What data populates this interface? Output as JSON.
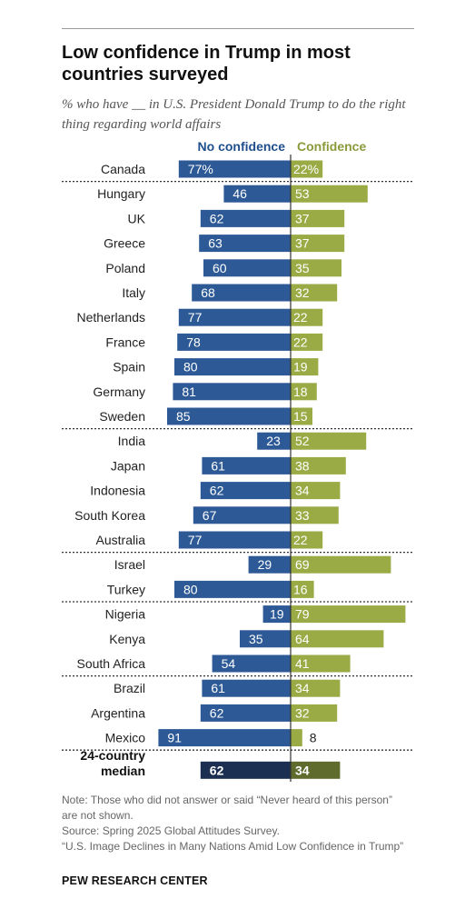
{
  "title": "Low confidence in Trump in most countries surveyed",
  "subtitle": "% who have __ in U.S. President Donald Trump to do the right thing regarding world affairs",
  "colors": {
    "no_confidence": "#2d5a96",
    "confidence": "#9aab46",
    "median_no": "#1b2f52",
    "median_yes": "#5f6b2c",
    "divider": "#333333"
  },
  "chart_data": {
    "type": "bar",
    "orientation": "horizontal-diverging",
    "series": [
      {
        "name": "No confidence",
        "values": [
          77,
          46,
          62,
          63,
          60,
          68,
          77,
          78,
          80,
          81,
          85,
          23,
          61,
          62,
          67,
          77,
          29,
          80,
          19,
          35,
          54,
          61,
          62,
          91,
          62
        ]
      },
      {
        "name": "Confidence",
        "values": [
          22,
          53,
          37,
          37,
          35,
          32,
          22,
          22,
          19,
          18,
          15,
          52,
          38,
          34,
          33,
          22,
          69,
          16,
          79,
          64,
          41,
          34,
          32,
          8,
          34
        ]
      }
    ],
    "categories": [
      "Canada",
      "Hungary",
      "UK",
      "Greece",
      "Poland",
      "Italy",
      "Netherlands",
      "France",
      "Spain",
      "Germany",
      "Sweden",
      "India",
      "Japan",
      "Indonesia",
      "South Korea",
      "Australia",
      "Israel",
      "Turkey",
      "Nigeria",
      "Kenya",
      "South Africa",
      "Brazil",
      "Argentina",
      "Mexico",
      "24-country median"
    ],
    "value_labels_no": [
      "77%",
      "46",
      "62",
      "63",
      "60",
      "68",
      "77",
      "78",
      "80",
      "81",
      "85",
      "23",
      "61",
      "62",
      "67",
      "77",
      "29",
      "80",
      "19",
      "35",
      "54",
      "61",
      "62",
      "91",
      "62"
    ],
    "value_labels_yes": [
      "22%",
      "53",
      "37",
      "37",
      "35",
      "32",
      "22",
      "22",
      "19",
      "18",
      "15",
      "52",
      "38",
      "34",
      "33",
      "22",
      "69",
      "16",
      "79",
      "64",
      "41",
      "34",
      "32",
      "8",
      "34"
    ],
    "group_breaks_after": [
      "Canada",
      "Sweden",
      "Australia",
      "Turkey",
      "South Africa",
      "Mexico"
    ],
    "median_label_lines": [
      "24-country",
      "median"
    ]
  },
  "note": {
    "line1": "Note: Those who did not answer or said “Never heard of this person” are not shown.",
    "line2": "Source: Spring 2025 Global Attitudes Survey.",
    "line3": "“U.S. Image Declines in Many Nations Amid Low Confidence in Trump”"
  },
  "brand": "PEW RESEARCH CENTER"
}
